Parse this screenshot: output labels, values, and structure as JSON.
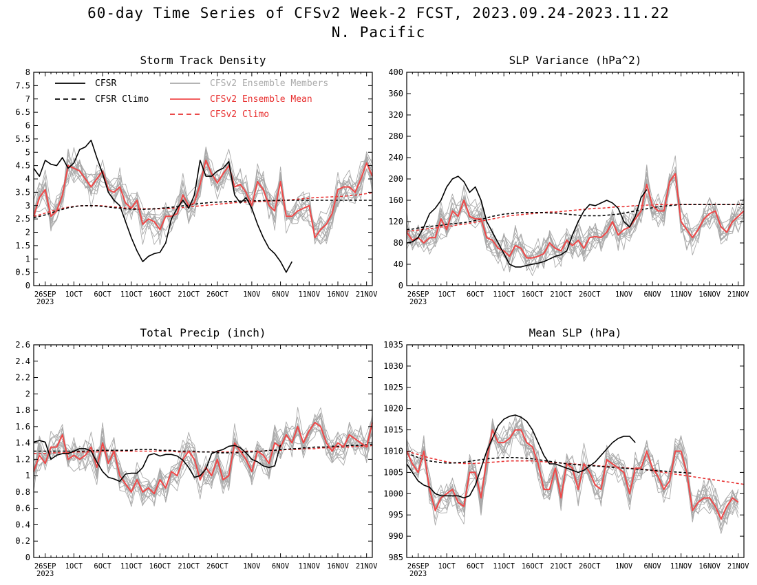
{
  "header": {
    "title": "60-day Time Series of CFSv2 Week-2 FCST, 2023.09.24-2023.11.22",
    "subtitle": "N. Pacific"
  },
  "x_ticks": [
    "26SEP",
    "1OCT",
    "6OCT",
    "11OCT",
    "16OCT",
    "21OCT",
    "26OCT",
    "1NOV",
    "6NOV",
    "11NOV",
    "16NOV",
    "21NOV"
  ],
  "x_year_label": "2023",
  "legend": {
    "cfsr": "CFSR",
    "cfsr_climo": "CFSR Climo",
    "members": "CFSv2 Ensemble Members",
    "mean": "CFSv2 Ensemble Mean",
    "cfsv2_climo": "CFSv2 Climo"
  },
  "colors": {
    "cfsr": "#000000",
    "members": "#a9a9a9",
    "mean": "#f04848",
    "climo_red": "#e83030"
  },
  "chart_data": [
    {
      "type": "line",
      "title": "Storm Track Density",
      "x": "days 1-60 (2023-09-24 to 2023-11-22)",
      "ylim": [
        0,
        8
      ],
      "yticks": [
        "0",
        "0.5",
        "1",
        "1.5",
        "2",
        "2.5",
        "3",
        "3.5",
        "4",
        "4.5",
        "5",
        "5.5",
        "6",
        "6.5",
        "7",
        "7.5",
        "8"
      ],
      "series": [
        {
          "name": "CFSR",
          "values": [
            4.4,
            4.1,
            4.7,
            4.55,
            4.5,
            4.8,
            4.4,
            4.6,
            5.1,
            5.2,
            5.45,
            4.8,
            4.2,
            3.5,
            3.2,
            3.0,
            2.4,
            1.8,
            1.3,
            0.9,
            1.1,
            1.2,
            1.25,
            1.6,
            2.5,
            2.9,
            3.2,
            2.9,
            3.4,
            4.7,
            4.1,
            4.1,
            4.3,
            4.4,
            4.65,
            3.4,
            3.1,
            3.3,
            2.9,
            2.3,
            1.8,
            1.4,
            1.2,
            0.9,
            0.5,
            0.9
          ]
        },
        {
          "name": "CFSR Climo",
          "values": [
            2.55,
            2.6,
            2.65,
            2.72,
            2.8,
            2.86,
            2.92,
            2.96,
            2.99,
            3.0,
            3.0,
            2.99,
            2.97,
            2.95,
            2.92,
            2.9,
            2.88,
            2.87,
            2.86,
            2.86,
            2.87,
            2.88,
            2.9,
            2.92,
            2.94,
            2.96,
            2.99,
            3.02,
            3.05,
            3.08,
            3.1,
            3.12,
            3.13,
            3.14,
            3.15,
            3.16,
            3.17,
            3.18,
            3.18,
            3.18,
            3.19,
            3.19,
            3.19,
            3.2,
            3.2,
            3.2,
            3.2,
            3.2,
            3.2,
            3.2,
            3.2,
            3.2,
            3.2,
            3.2,
            3.2,
            3.2,
            3.2,
            3.2,
            3.2,
            3.2
          ]
        },
        {
          "name": "CFSv2 Ensemble Mean",
          "values": [
            2.6,
            3.3,
            3.6,
            2.6,
            2.8,
            3.4,
            4.5,
            4.4,
            4.3,
            4.0,
            3.7,
            4.0,
            4.3,
            3.6,
            3.5,
            3.7,
            3.1,
            2.9,
            3.2,
            2.3,
            2.5,
            2.4,
            2.1,
            2.6,
            2.6,
            2.7,
            3.4,
            3.0,
            3.1,
            3.8,
            4.7,
            4.2,
            3.85,
            4.2,
            4.5,
            3.7,
            3.8,
            3.5,
            3.0,
            3.9,
            3.6,
            3.0,
            2.8,
            3.9,
            2.6,
            2.6,
            2.8,
            2.9,
            3.0,
            1.8,
            2.1,
            2.3,
            2.7,
            3.6,
            3.7,
            3.7,
            3.5,
            4.0,
            4.6,
            4.1
          ]
        },
        {
          "name": "CFSv2 Climo",
          "values": [
            2.6,
            2.65,
            2.72,
            2.79,
            2.85,
            2.9,
            2.94,
            2.97,
            2.99,
            3.0,
            3.0,
            3.0,
            2.99,
            2.97,
            2.95,
            2.93,
            2.91,
            2.9,
            2.89,
            2.88,
            2.88,
            2.88,
            2.88,
            2.89,
            2.9,
            2.91,
            2.93,
            2.95,
            2.97,
            2.99,
            3.01,
            3.03,
            3.05,
            3.07,
            3.09,
            3.11,
            3.12,
            3.13,
            3.14,
            3.15,
            3.16,
            3.17,
            3.18,
            3.19,
            3.2,
            3.22,
            3.24,
            3.26,
            3.28,
            3.3,
            3.31,
            3.32,
            3.33,
            3.34,
            3.35,
            3.37,
            3.39,
            3.42,
            3.45,
            3.48
          ]
        }
      ]
    },
    {
      "type": "line",
      "title": "SLP Variance (hPa^2)",
      "x": "days 1-60 (2023-09-24 to 2023-11-22)",
      "ylim": [
        0,
        400
      ],
      "yticks": [
        "0",
        "40",
        "80",
        "120",
        "160",
        "200",
        "240",
        "280",
        "320",
        "360",
        "400"
      ],
      "series": [
        {
          "name": "CFSR",
          "values": [
            80,
            82,
            90,
            110,
            135,
            145,
            160,
            185,
            200,
            205,
            195,
            175,
            185,
            160,
            120,
            100,
            80,
            60,
            40,
            35,
            35,
            38,
            40,
            42,
            45,
            50,
            55,
            58,
            65,
            95,
            120,
            140,
            152,
            150,
            155,
            160,
            155,
            145,
            120,
            110,
            130,
            165,
            180
          ]
        },
        {
          "name": "CFSR Climo",
          "values": [
            105,
            106,
            108,
            110,
            111,
            112,
            113,
            115,
            116,
            117,
            118,
            120,
            122,
            124,
            127,
            130,
            132,
            134,
            135,
            136,
            137,
            137,
            137,
            137,
            137,
            136,
            136,
            135,
            134,
            133,
            132,
            131,
            131,
            131,
            131,
            132,
            133,
            134,
            136,
            138,
            140,
            142,
            144,
            146,
            148,
            149,
            150,
            151,
            152,
            152,
            152,
            152,
            152,
            152,
            152,
            152,
            152,
            152,
            152,
            152
          ]
        },
        {
          "name": "CFSv2 Ensemble Mean",
          "values": [
            100,
            85,
            90,
            80,
            90,
            90,
            125,
            105,
            140,
            130,
            160,
            130,
            125,
            125,
            90,
            85,
            70,
            65,
            55,
            75,
            70,
            52,
            52,
            55,
            60,
            80,
            70,
            65,
            85,
            75,
            85,
            70,
            90,
            92,
            90,
            100,
            120,
            95,
            105,
            110,
            125,
            140,
            190,
            150,
            140,
            140,
            195,
            210,
            120,
            105,
            90,
            105,
            125,
            135,
            140,
            110,
            100,
            120,
            130,
            140
          ]
        },
        {
          "name": "CFSv2 Climo",
          "values": [
            102,
            103,
            104,
            106,
            107,
            108,
            110,
            111,
            112,
            114,
            115,
            117,
            119,
            121,
            123,
            125,
            127,
            129,
            131,
            132,
            133,
            134,
            135,
            136,
            137,
            138,
            138,
            139,
            140,
            141,
            142,
            143,
            144,
            145,
            145,
            146,
            147,
            148,
            148,
            149,
            150,
            150,
            151,
            151,
            152,
            152,
            152,
            152,
            152,
            152,
            152,
            152,
            152,
            152,
            152,
            152,
            152,
            152,
            152,
            152
          ]
        }
      ]
    },
    {
      "type": "line",
      "title": "Total Precip (inch)",
      "x": "days 1-60 (2023-09-24 to 2023-11-22)",
      "ylim": [
        0,
        2.6
      ],
      "yticks": [
        "0",
        "0.2",
        "0.4",
        "0.6",
        "0.8",
        "1",
        "1.2",
        "1.4",
        "1.6",
        "1.8",
        "2",
        "2.2",
        "2.4",
        "2.6"
      ],
      "series": [
        {
          "name": "CFSR",
          "values": [
            1.41,
            1.43,
            1.41,
            1.2,
            1.25,
            1.27,
            1.27,
            1.3,
            1.33,
            1.33,
            1.3,
            1.17,
            1.05,
            0.98,
            0.96,
            0.93,
            1.02,
            1.03,
            1.03,
            1.1,
            1.25,
            1.27,
            1.24,
            1.26,
            1.26,
            1.24,
            1.19,
            1.1,
            0.98,
            1.0,
            1.08,
            1.27,
            1.3,
            1.32,
            1.36,
            1.37,
            1.34,
            1.28,
            1.2,
            1.17,
            1.12,
            1.1,
            1.12,
            1.38
          ]
        },
        {
          "name": "CFSR Climo",
          "values": [
            1.3,
            1.3,
            1.3,
            1.3,
            1.3,
            1.3,
            1.3,
            1.3,
            1.3,
            1.3,
            1.3,
            1.31,
            1.31,
            1.31,
            1.31,
            1.31,
            1.31,
            1.31,
            1.32,
            1.32,
            1.32,
            1.32,
            1.31,
            1.31,
            1.31,
            1.3,
            1.3,
            1.3,
            1.3,
            1.29,
            1.29,
            1.29,
            1.28,
            1.28,
            1.28,
            1.28,
            1.28,
            1.29,
            1.29,
            1.3,
            1.3,
            1.31,
            1.31,
            1.32,
            1.32,
            1.33,
            1.33,
            1.34,
            1.34,
            1.35,
            1.35,
            1.35,
            1.36,
            1.36,
            1.36,
            1.37,
            1.37,
            1.37,
            1.38,
            1.38
          ]
        },
        {
          "name": "CFSv2 Ensemble Mean",
          "values": [
            1.05,
            1.25,
            1.15,
            1.35,
            1.35,
            1.5,
            1.2,
            1.25,
            1.2,
            1.25,
            1.35,
            1.1,
            1.4,
            1.15,
            1.3,
            1.0,
            0.9,
            0.8,
            0.95,
            0.8,
            0.85,
            0.78,
            0.95,
            0.85,
            1.05,
            1.0,
            1.2,
            1.3,
            1.2,
            0.95,
            1.1,
            1.0,
            1.2,
            0.95,
            1.0,
            1.4,
            1.3,
            1.2,
            1.05,
            1.3,
            1.25,
            1.15,
            1.4,
            1.35,
            1.5,
            1.4,
            1.6,
            1.4,
            1.55,
            1.65,
            1.6,
            1.4,
            1.3,
            1.4,
            1.35,
            1.5,
            1.45,
            1.4,
            1.35,
            1.65
          ]
        },
        {
          "name": "CFSv2 Climo",
          "values": [
            1.27,
            1.27,
            1.27,
            1.28,
            1.28,
            1.28,
            1.28,
            1.29,
            1.29,
            1.29,
            1.29,
            1.29,
            1.3,
            1.3,
            1.3,
            1.3,
            1.3,
            1.3,
            1.3,
            1.3,
            1.3,
            1.3,
            1.3,
            1.3,
            1.3,
            1.29,
            1.29,
            1.29,
            1.29,
            1.29,
            1.29,
            1.29,
            1.29,
            1.29,
            1.29,
            1.29,
            1.29,
            1.3,
            1.3,
            1.3,
            1.3,
            1.31,
            1.31,
            1.31,
            1.32,
            1.32,
            1.32,
            1.33,
            1.33,
            1.33,
            1.34,
            1.34,
            1.34,
            1.35,
            1.35,
            1.35,
            1.36,
            1.36,
            1.36,
            1.37
          ]
        }
      ]
    },
    {
      "type": "line",
      "title": "Mean SLP (hPa)",
      "x": "days 1-60 (2023-09-24 to 2023-11-22)",
      "ylim": [
        985,
        1035
      ],
      "yticks": [
        "985",
        "990",
        "995",
        "1000",
        "1005",
        "1010",
        "1015",
        "1020",
        "1025",
        "1030",
        "1035"
      ],
      "series": [
        {
          "name": "CFSR",
          "values": [
            1007,
            1005,
            1003,
            1002,
            1001.5,
            1000,
            999.5,
            999.5,
            999.5,
            999.5,
            999,
            999.5,
            1002,
            1006,
            1010,
            1013,
            1016,
            1017.5,
            1018.2,
            1018.5,
            1018,
            1017,
            1015,
            1012,
            1009,
            1007,
            1007,
            1006.5,
            1006,
            1005.5,
            1005,
            1005.5,
            1006.5,
            1007.5,
            1009,
            1010.5,
            1012,
            1013,
            1013.5,
            1013.5,
            1012
          ]
        },
        {
          "name": "CFSR Climo",
          "values": [
            1009.5,
            1009,
            1008.5,
            1008,
            1007.7,
            1007.5,
            1007.3,
            1007.2,
            1007.2,
            1007.3,
            1007.4,
            1007.6,
            1007.8,
            1008,
            1008.2,
            1008.3,
            1008.4,
            1008.5,
            1008.5,
            1008.5,
            1008.4,
            1008.3,
            1008.2,
            1008,
            1007.8,
            1007.6,
            1007.4,
            1007.2,
            1007,
            1006.9,
            1006.8,
            1006.7,
            1006.6,
            1006.5,
            1006.4,
            1006.3,
            1006.2,
            1006.1,
            1006,
            1005.9,
            1005.8,
            1005.7,
            1005.6,
            1005.5,
            1005.4,
            1005.3,
            1005.2,
            1005.1,
            1005,
            1004.9,
            1004.8
          ]
        },
        {
          "name": "CFSv2 Ensemble Mean",
          "values": [
            1010,
            1007,
            1005,
            1010,
            1001,
            996,
            999,
            1000,
            1001,
            998,
            997,
            1005,
            1005,
            999,
            1008,
            1015,
            1012,
            1012,
            1013,
            1015,
            1015,
            1012,
            1011,
            1007,
            1001,
            1001,
            1006,
            999,
            1007,
            1006,
            1001,
            1007,
            1005,
            1002,
            1001,
            1008,
            1007,
            1006,
            1005,
            1000,
            1006,
            1006,
            1010,
            1006,
            1004,
            1001,
            1003,
            1010,
            1010,
            1005,
            996,
            998,
            999,
            999,
            997,
            994,
            997,
            999,
            998
          ]
        },
        {
          "name": "CFSv2 Climo",
          "values": [
            1010,
            1009.6,
            1009.2,
            1008.8,
            1008.4,
            1008.1,
            1007.8,
            1007.5,
            1007.3,
            1007.2,
            1007.1,
            1007.1,
            1007.1,
            1007.2,
            1007.3,
            1007.4,
            1007.5,
            1007.6,
            1007.7,
            1007.7,
            1007.7,
            1007.7,
            1007.7,
            1007.6,
            1007.5,
            1007.4,
            1007.3,
            1007.2,
            1007.1,
            1007,
            1006.9,
            1006.8,
            1006.7,
            1006.6,
            1006.5,
            1006.4,
            1006.3,
            1006.2,
            1006.1,
            1006,
            1005.9,
            1005.8,
            1005.6,
            1005.4,
            1005.2,
            1005,
            1004.8,
            1004.6,
            1004.4,
            1004.2,
            1004,
            1003.8,
            1003.6,
            1003.4,
            1003.2,
            1003,
            1002.8,
            1002.6,
            1002.4,
            1002.2
          ]
        }
      ]
    }
  ]
}
